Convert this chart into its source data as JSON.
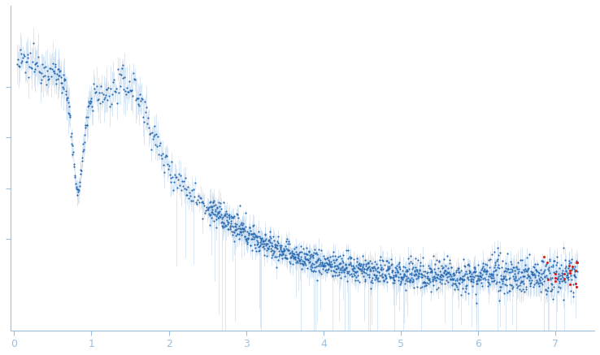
{
  "title": "",
  "xlabel": "",
  "ylabel": "",
  "xlim": [
    -0.05,
    7.5
  ],
  "dot_color_main": "#2869b0",
  "dot_color_red": "#d42020",
  "error_color": "#b8d4ee",
  "dot_size_main": 2.5,
  "dot_size_red": 5,
  "background_color": "#ffffff",
  "figsize": [
    7.38,
    4.37
  ],
  "dpi": 100
}
